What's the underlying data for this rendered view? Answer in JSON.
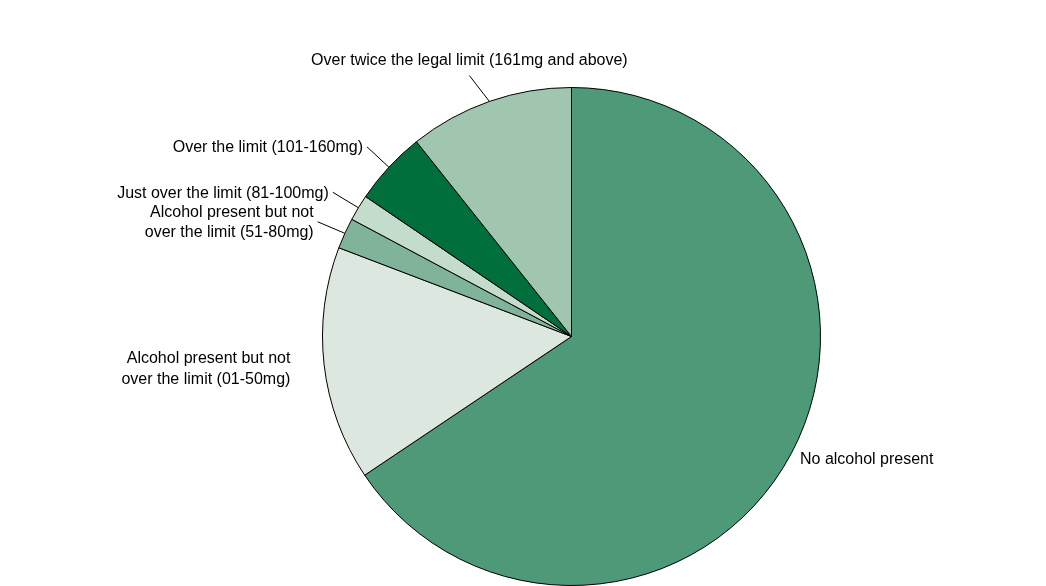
{
  "chart_data": {
    "type": "pie",
    "categories": [
      "No alcohol present",
      "Alcohol present but not over the limit (01-50mg)",
      "Alcohol present but not over the limit (51-80mg)",
      "Just over the limit (81-100mg)",
      "Over the limit (101-160mg)",
      "Over twice the legal limit (161mg and above)"
    ],
    "values": [
      65.6,
      15.2,
      2.0,
      1.7,
      4.8,
      10.7
    ],
    "colors": [
      "#4e9a78",
      "#dce8df",
      "#80b49a",
      "#c4dccb",
      "#006f3c",
      "#a1c6b0"
    ],
    "legend": false
  }
}
